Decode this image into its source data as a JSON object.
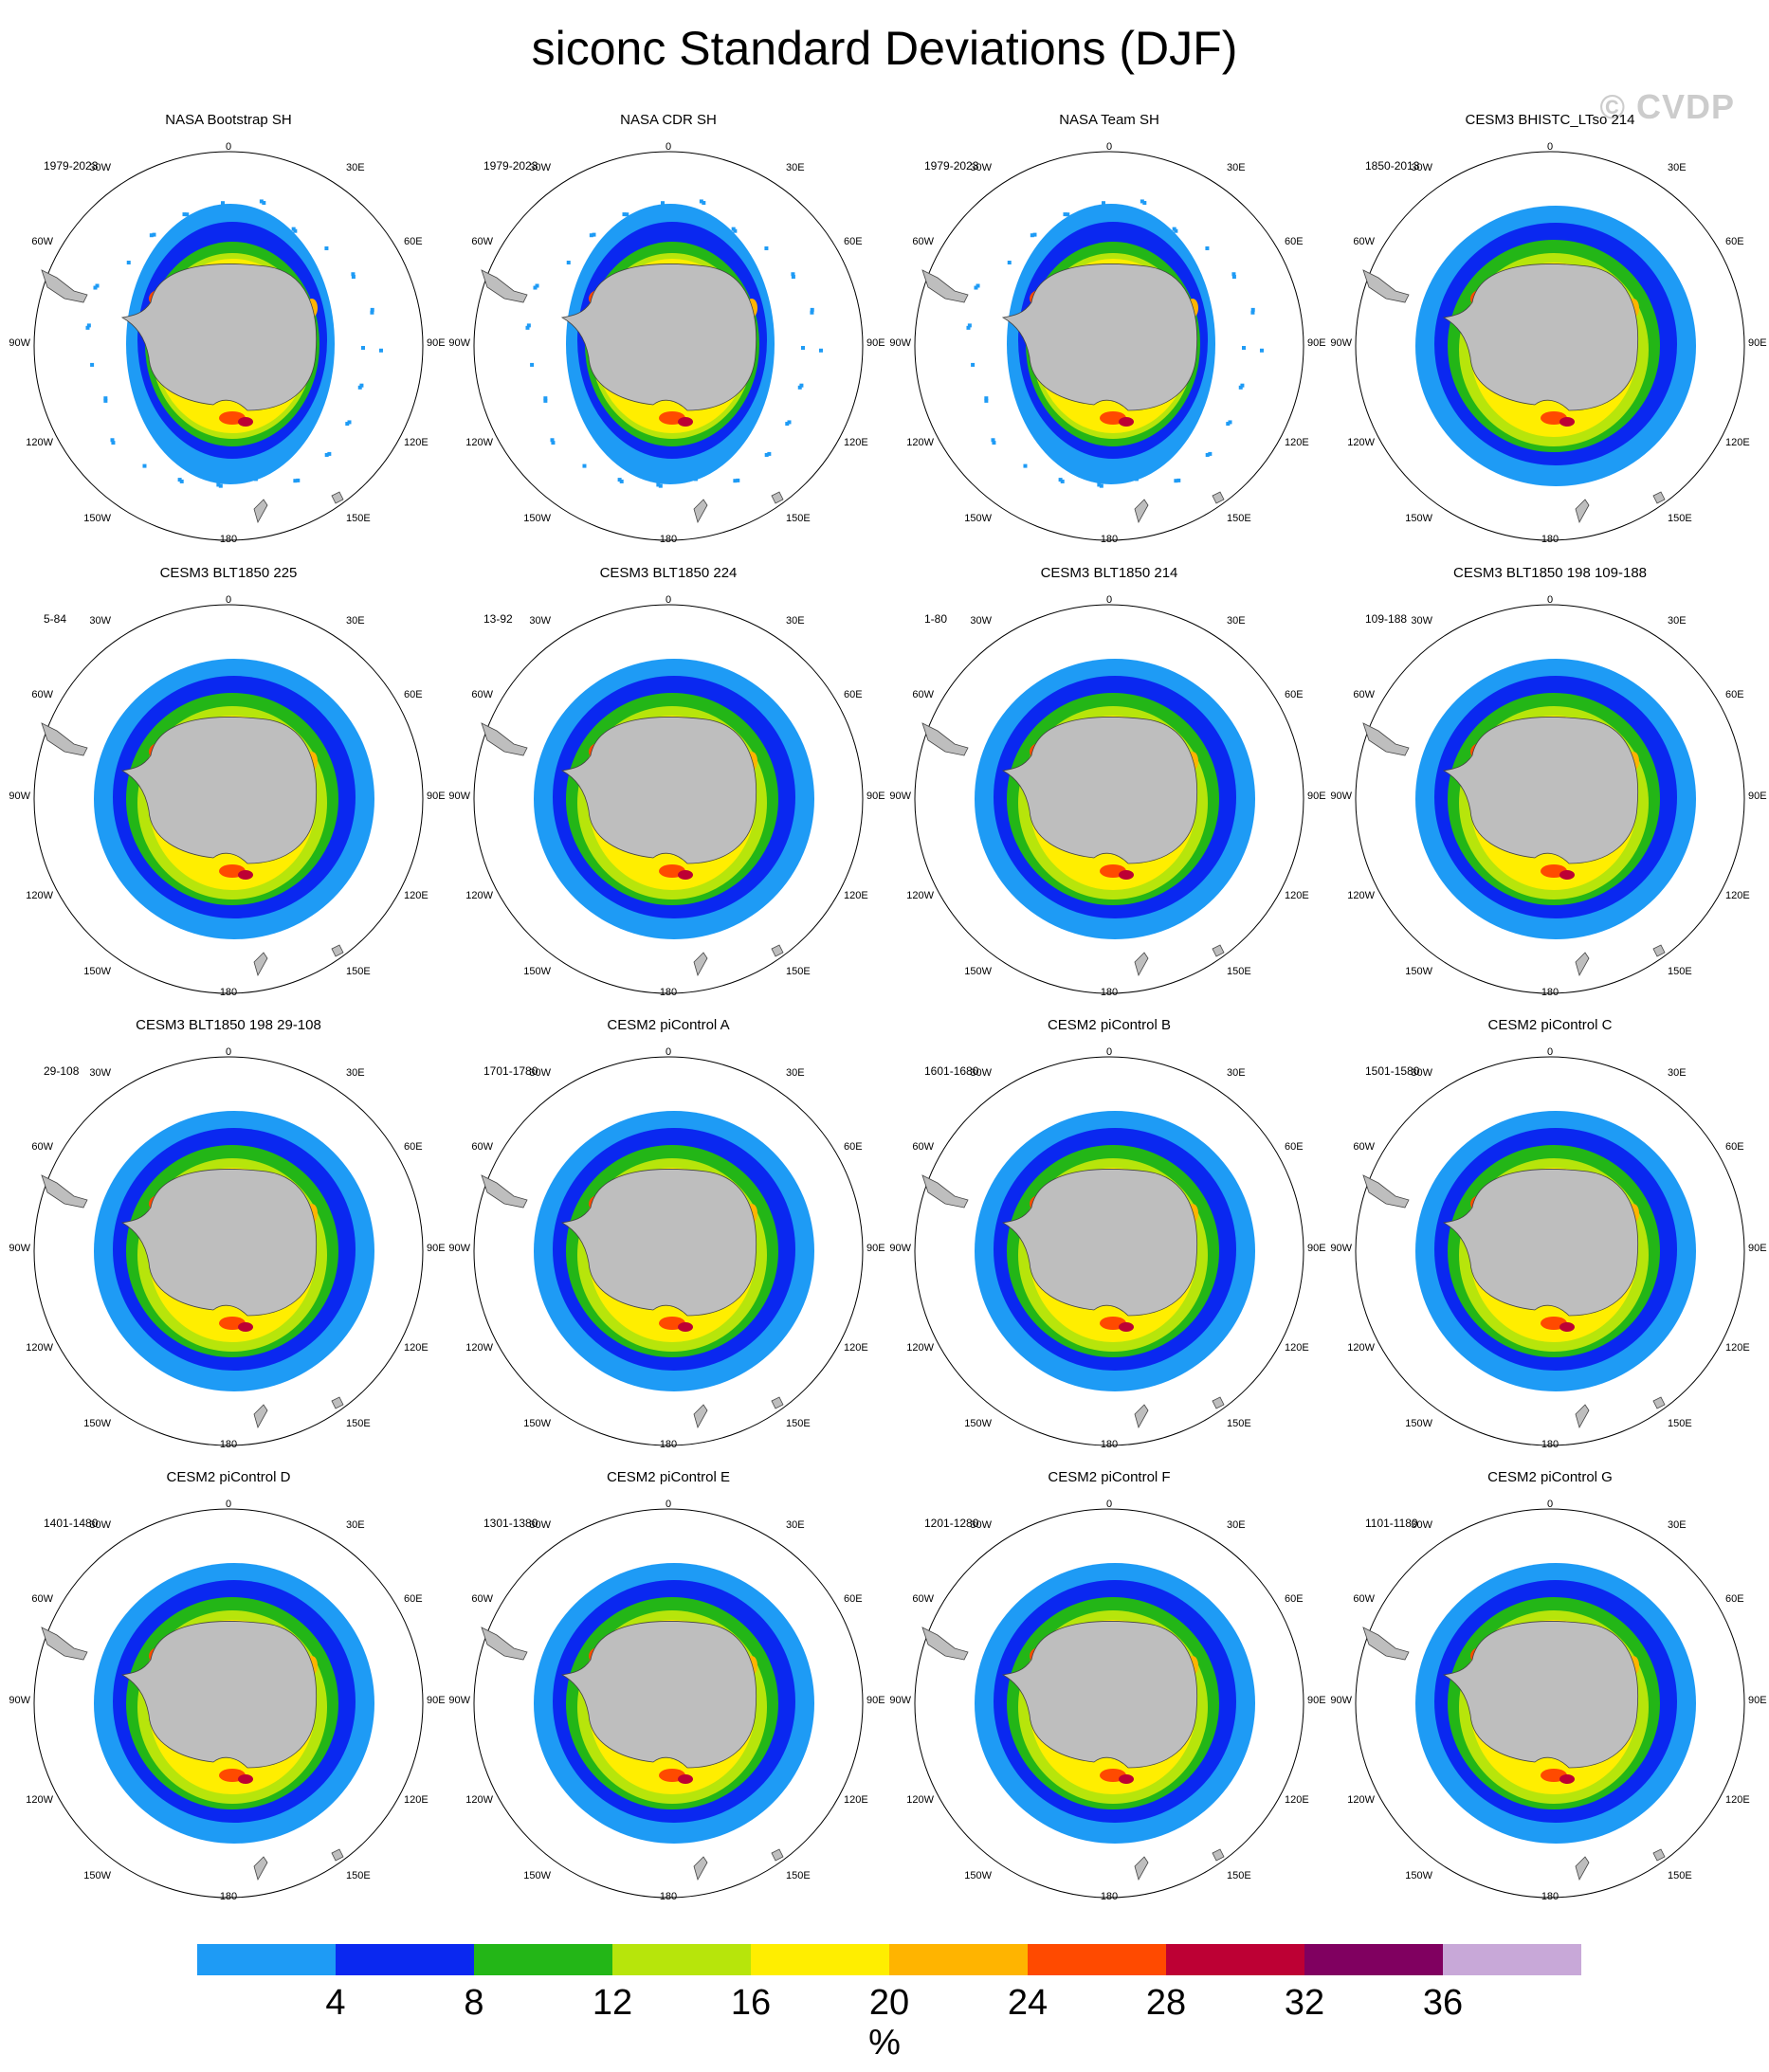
{
  "title": "siconc Standard Deviations (DJF)",
  "watermark": "© CVDP",
  "longitude_labels": {
    "top": "0",
    "bottom": "180",
    "upper_right": "30E",
    "upper_left": "30W",
    "right_high": "60E",
    "left_high": "60W",
    "right": "90E",
    "left": "90W",
    "right_low": "120E",
    "left_low": "120W",
    "lower_right": "150E",
    "lower_left": "150W"
  },
  "panels": [
    {
      "title": "NASA Bootstrap SH",
      "period": "1979-2023",
      "style": "obs"
    },
    {
      "title": "NASA CDR SH",
      "period": "1979-2023",
      "style": "obs"
    },
    {
      "title": "NASA Team SH",
      "period": "1979-2023",
      "style": "obs"
    },
    {
      "title": "CESM3 BHISTC_LTso 214",
      "period": "1850-2013",
      "style": "model"
    },
    {
      "title": "CESM3 BLT1850 225",
      "period": "5-84",
      "style": "model"
    },
    {
      "title": "CESM3 BLT1850 224",
      "period": "13-92",
      "style": "model"
    },
    {
      "title": "CESM3 BLT1850 214",
      "period": "1-80",
      "style": "model"
    },
    {
      "title": "CESM3 BLT1850 198 109-188",
      "period": "109-188",
      "style": "model"
    },
    {
      "title": "CESM3 BLT1850 198 29-108",
      "period": "29-108",
      "style": "model"
    },
    {
      "title": "CESM2 piControl A",
      "period": "1701-1780",
      "style": "model"
    },
    {
      "title": "CESM2 piControl B",
      "period": "1601-1680",
      "style": "model"
    },
    {
      "title": "CESM2 piControl C",
      "period": "1501-1580",
      "style": "model"
    },
    {
      "title": "CESM2 piControl D",
      "period": "1401-1480",
      "style": "model"
    },
    {
      "title": "CESM2 piControl E",
      "period": "1301-1380",
      "style": "model"
    },
    {
      "title": "CESM2 piControl F",
      "period": "1201-1280",
      "style": "model"
    },
    {
      "title": "CESM2 piControl G",
      "period": "1101-1180",
      "style": "model"
    }
  ],
  "colorbar": {
    "colors": [
      "#1e9bf5",
      "#0a28f0",
      "#23b617",
      "#b7e50b",
      "#ffee00",
      "#ffb400",
      "#ff4a00",
      "#bd0034",
      "#800060",
      "#c8a8d8"
    ],
    "labels": [
      "4",
      "8",
      "12",
      "16",
      "20",
      "24",
      "28",
      "32",
      "36"
    ],
    "units": "%"
  },
  "land_color": "#bebebe"
}
